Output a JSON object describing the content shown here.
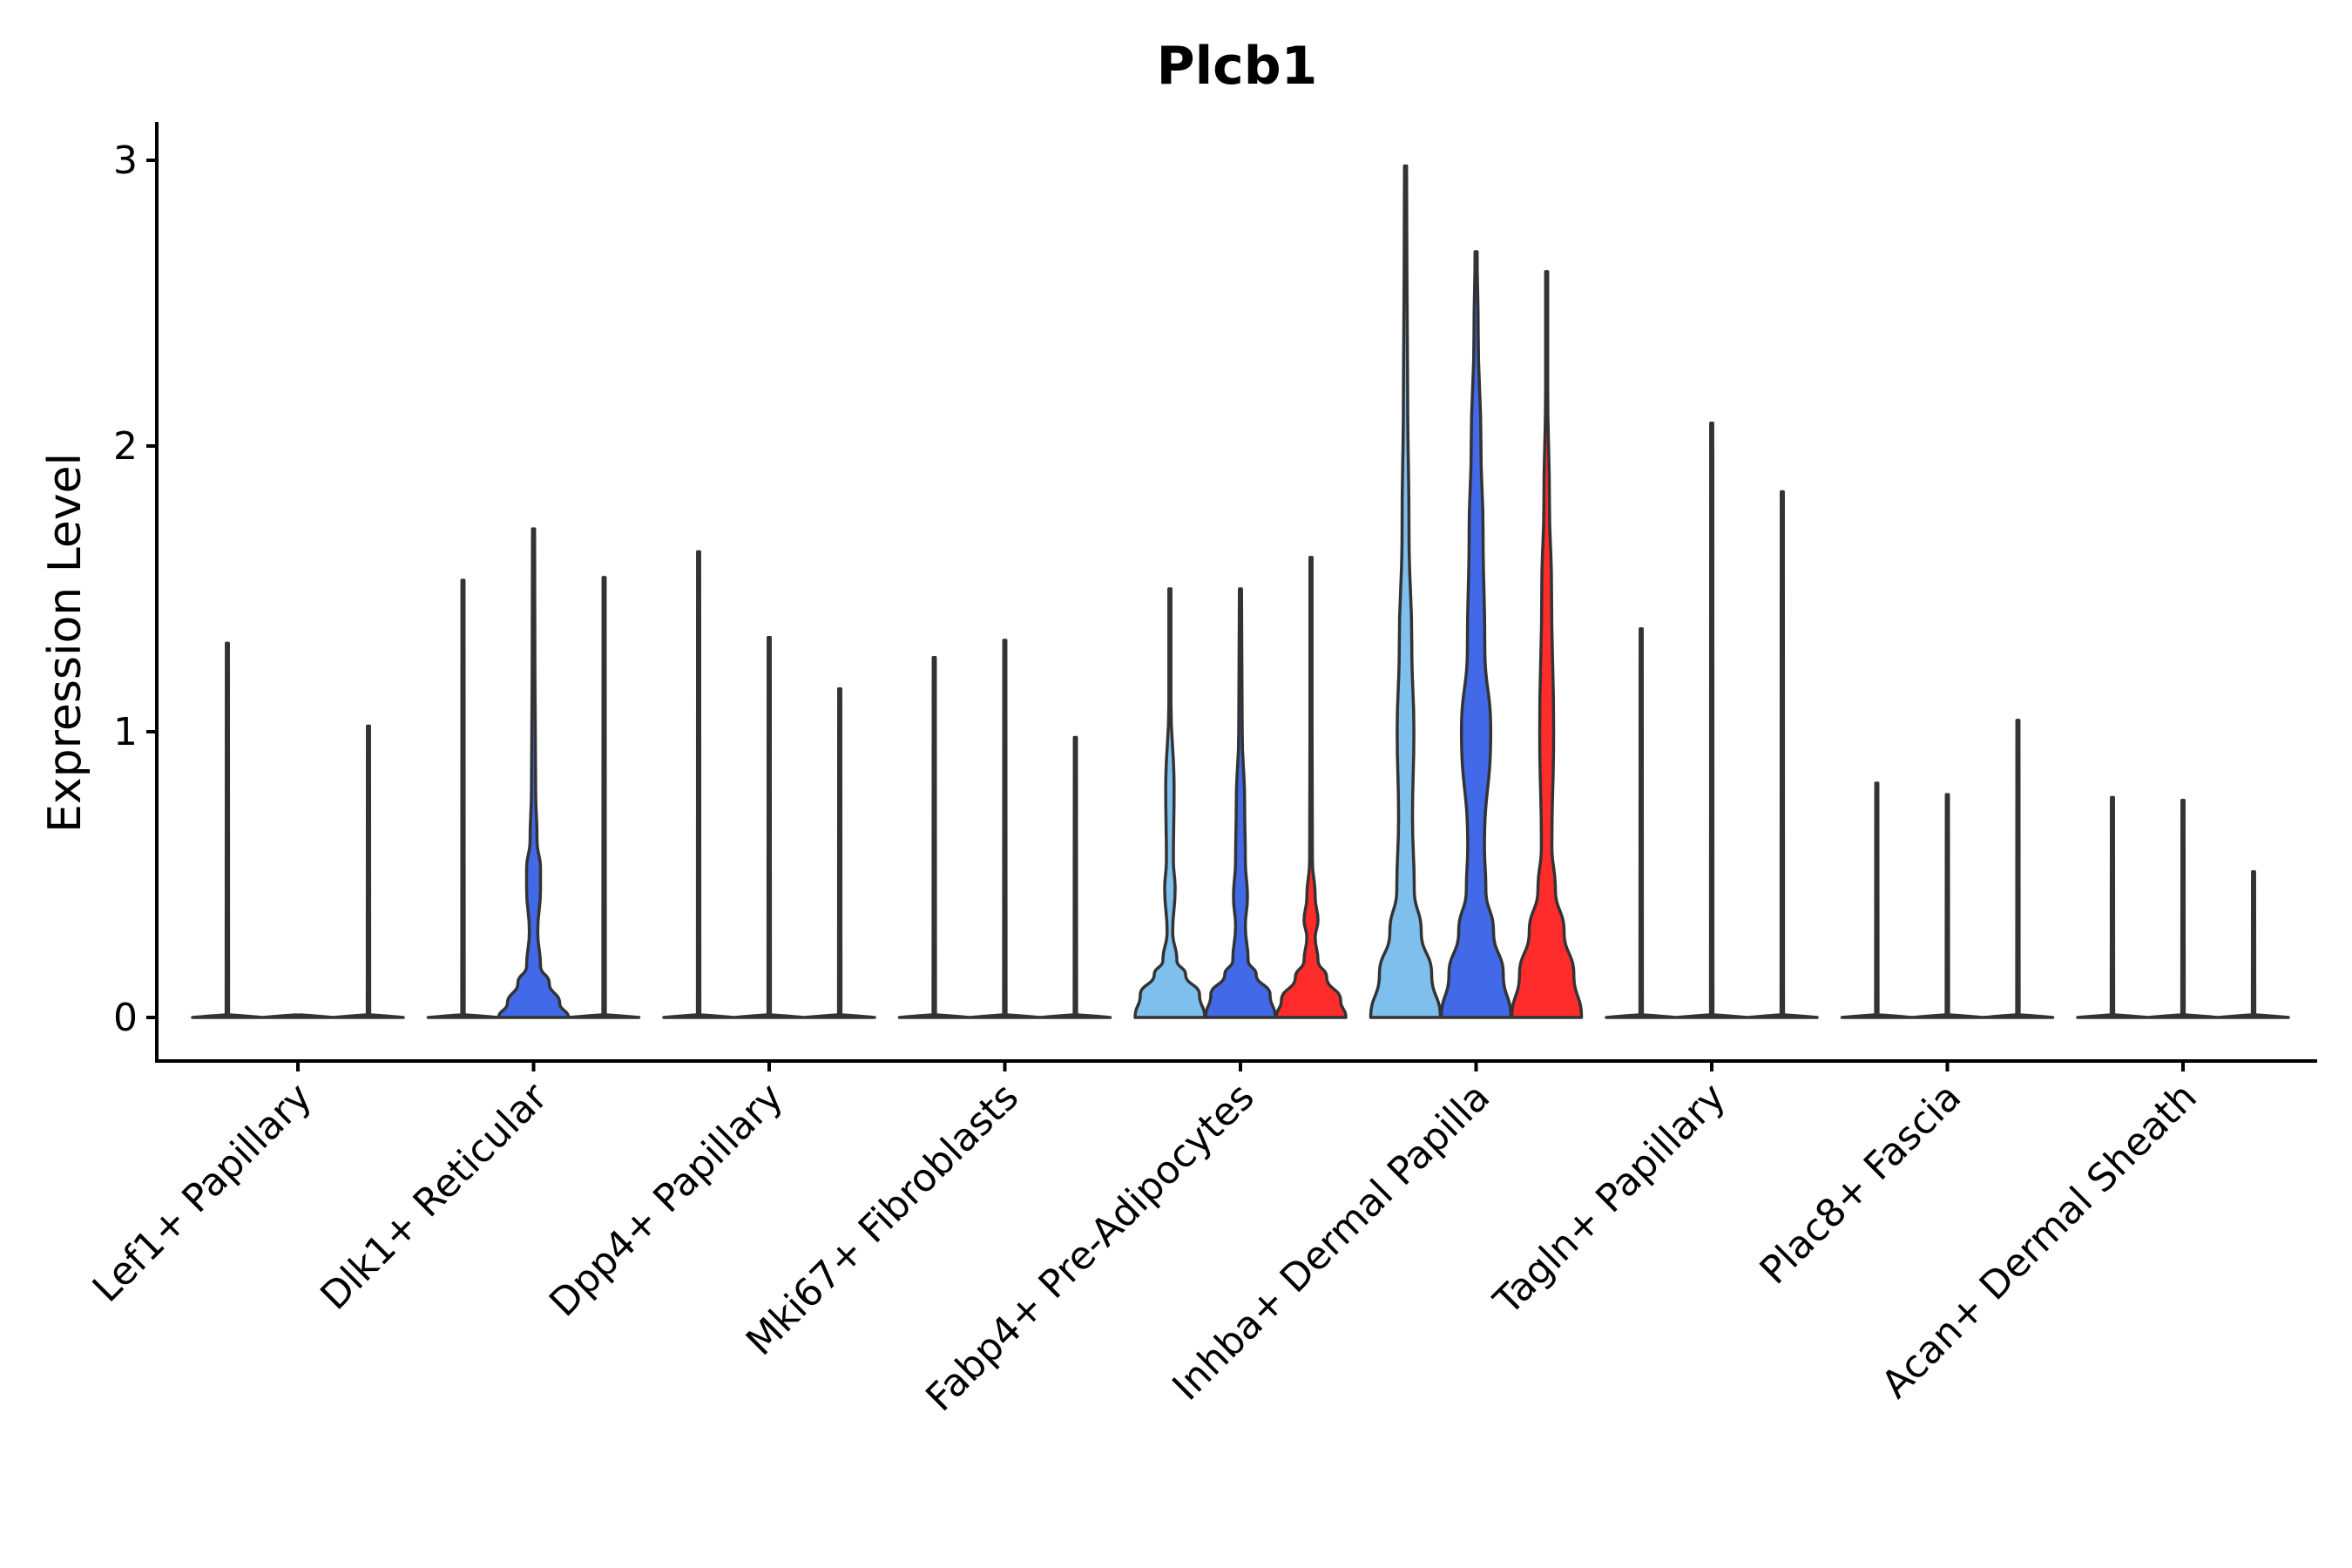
{
  "chart_data": {
    "type": "violin",
    "title": "Plcb1",
    "xlabel": "",
    "ylabel": "Expression Level",
    "ylim": [
      -0.15,
      3.15
    ],
    "yticks": [
      0,
      1,
      2,
      3
    ],
    "grid": false,
    "legend": "none",
    "categories": [
      "Lef1+ Papillary",
      "Dlk1+ Reticular",
      "Dpp4+ Papillary",
      "Mki67+ Fibroblasts",
      "Fabp4+ Pre-Adipocytes",
      "Inhba+ Dermal Papilla",
      "Tagln+ Papillary",
      "Plac8+ Fascia",
      "Acan+ Dermal Sheath"
    ],
    "groups": [
      {
        "name": "group-1",
        "color": "#7fbfed"
      },
      {
        "name": "group-2",
        "color": "#4169e8"
      },
      {
        "name": "group-3",
        "color": "#ff2c2c"
      }
    ],
    "series_max": [
      [
        1.31,
        0.0,
        1.02
      ],
      [
        1.53,
        1.71,
        1.54
      ],
      [
        1.63,
        1.33,
        1.15
      ],
      [
        1.26,
        1.32,
        0.98
      ],
      [
        1.5,
        1.5,
        1.61
      ],
      [
        2.98,
        2.68,
        2.61
      ],
      [
        1.36,
        2.08,
        1.84
      ],
      [
        0.82,
        0.78,
        1.04
      ],
      [
        0.77,
        0.76,
        0.51
      ]
    ]
  }
}
